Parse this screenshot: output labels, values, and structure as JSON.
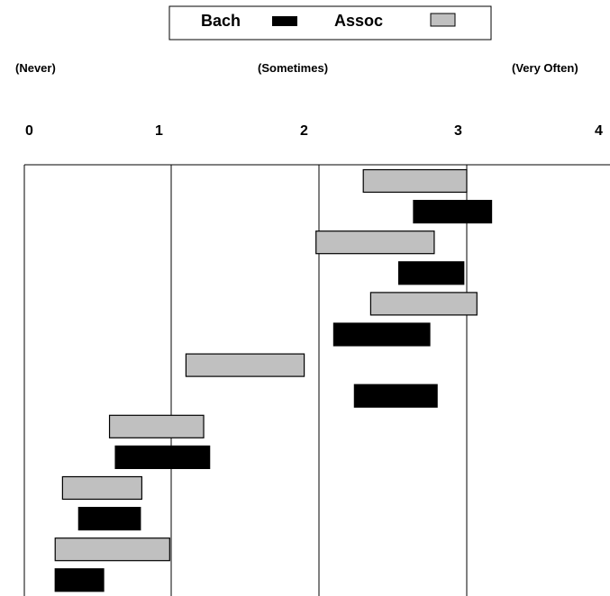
{
  "chart_data": {
    "type": "bar",
    "orientation": "horizontal-range",
    "legend": {
      "placement": "top-center",
      "entries": [
        {
          "name": "Bach",
          "color": "#000000"
        },
        {
          "name": "Assoc",
          "color": "#c0c0c0"
        }
      ]
    },
    "scale_labels": [
      {
        "text": "(Never)",
        "value": 0
      },
      {
        "text": "(Sometimes)",
        "value": 2
      },
      {
        "text": "(Very Often)",
        "value": 4
      }
    ],
    "xlim": [
      0,
      4
    ],
    "xticks": [
      {
        "label": "0",
        "value": 0
      },
      {
        "label": "1",
        "value": 1
      },
      {
        "label": "2",
        "value": 2
      },
      {
        "label": "3",
        "value": 3
      },
      {
        "label": "4",
        "value": 4
      }
    ],
    "gridlines": [
      0,
      1,
      2,
      3
    ],
    "bars": [
      {
        "series": "Assoc",
        "start": 2.3,
        "end": 3.0
      },
      {
        "series": "Bach",
        "start": 2.64,
        "end": 3.17
      },
      {
        "series": "Assoc",
        "start": 1.98,
        "end": 2.78
      },
      {
        "series": "Bach",
        "start": 2.54,
        "end": 2.98
      },
      {
        "series": "Assoc",
        "start": 2.35,
        "end": 3.07
      },
      {
        "series": "Bach",
        "start": 2.1,
        "end": 2.75
      },
      {
        "series": "Assoc",
        "start": 1.1,
        "end": 1.9
      },
      {
        "series": "Bach",
        "start": 2.24,
        "end": 2.8
      },
      {
        "series": "Assoc",
        "start": 0.58,
        "end": 1.22
      },
      {
        "series": "Bach",
        "start": 0.62,
        "end": 1.26
      },
      {
        "series": "Assoc",
        "start": 0.26,
        "end": 0.8
      },
      {
        "series": "Bach",
        "start": 0.37,
        "end": 0.79
      },
      {
        "series": "Assoc",
        "start": 0.21,
        "end": 0.99
      },
      {
        "series": "Bach",
        "start": 0.21,
        "end": 0.54
      }
    ]
  }
}
